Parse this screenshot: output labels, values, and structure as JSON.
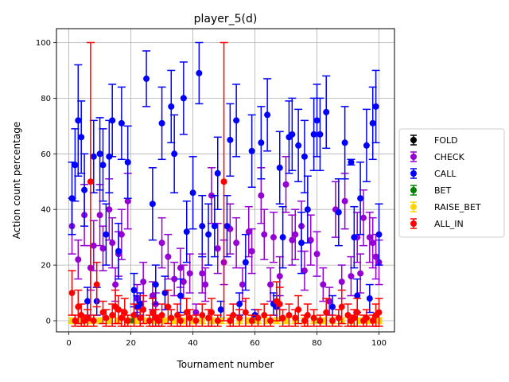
{
  "chart_data": {
    "type": "scatter",
    "title": "player_5(d)",
    "xlabel": "Tournament number",
    "ylabel": "Action count percentage",
    "xlim": [
      -4,
      105
    ],
    "ylim": [
      -4,
      105
    ],
    "xticks": [
      0,
      20,
      40,
      60,
      80,
      100
    ],
    "yticks": [
      0,
      20,
      40,
      60,
      80,
      100
    ],
    "grid": true,
    "legend_position": "center-right",
    "error_bars": true,
    "series": [
      {
        "name": "FOLD",
        "color": "#000000",
        "x": [
          1,
          20,
          40,
          60,
          80,
          100
        ],
        "y": [
          0,
          0,
          0,
          0,
          0,
          0
        ],
        "err": [
          0,
          0,
          0,
          0,
          0,
          0
        ]
      },
      {
        "name": "CHECK",
        "color": "#9400d3",
        "x": [
          1,
          3,
          5,
          7,
          8,
          10,
          11,
          13,
          14,
          15,
          16,
          17,
          19,
          22,
          24,
          27,
          28,
          30,
          32,
          34,
          36,
          37,
          39,
          41,
          43,
          44,
          46,
          48,
          50,
          52,
          54,
          56,
          58,
          59,
          62,
          63,
          65,
          66,
          68,
          70,
          72,
          73,
          75,
          76,
          78,
          80,
          82,
          84,
          86,
          88,
          89,
          91,
          93,
          94,
          95,
          97,
          98,
          99,
          100
        ],
        "y": [
          34,
          22,
          38,
          19,
          27,
          38,
          26,
          40,
          28,
          13,
          24,
          31,
          43,
          8,
          14,
          9,
          6,
          28,
          23,
          15,
          19,
          14,
          17,
          3,
          17,
          13,
          45,
          26,
          21,
          33,
          28,
          13,
          32,
          25,
          45,
          31,
          13,
          30,
          16,
          49,
          29,
          31,
          34,
          18,
          29,
          24,
          13,
          7,
          40,
          14,
          43,
          16,
          30,
          17,
          37,
          30,
          28,
          23,
          21
        ],
        "err": [
          10,
          7,
          11,
          8,
          9,
          11,
          8,
          11,
          9,
          6,
          8,
          9,
          10,
          5,
          7,
          5,
          4,
          9,
          8,
          6,
          7,
          6,
          7,
          3,
          7,
          6,
          10,
          9,
          8,
          9,
          9,
          6,
          9,
          8,
          10,
          9,
          6,
          9,
          7,
          10,
          9,
          9,
          9,
          7,
          9,
          8,
          6,
          5,
          10,
          6,
          10,
          7,
          9,
          7,
          10,
          9,
          9,
          8,
          8
        ]
      },
      {
        "name": "CALL",
        "color": "#0000ff",
        "x": [
          1,
          2,
          3,
          4,
          5,
          6,
          8,
          9,
          10,
          11,
          12,
          13,
          14,
          16,
          17,
          19,
          21,
          22,
          23,
          25,
          27,
          28,
          30,
          31,
          33,
          34,
          36,
          37,
          38,
          40,
          42,
          43,
          45,
          47,
          48,
          49,
          51,
          52,
          54,
          55,
          57,
          59,
          60,
          62,
          64,
          66,
          67,
          68,
          69,
          71,
          72,
          74,
          75,
          76,
          77,
          79,
          80,
          81,
          83,
          85,
          87,
          89,
          91,
          92,
          93,
          94,
          96,
          97,
          98,
          99,
          100
        ],
        "y": [
          44,
          56,
          72,
          66,
          47,
          7,
          59,
          7,
          60,
          56,
          31,
          59,
          72,
          25,
          71,
          57,
          11,
          5,
          6,
          87,
          42,
          13,
          71,
          10,
          77,
          60,
          9,
          80,
          32,
          46,
          89,
          34,
          31,
          34,
          53,
          4,
          34,
          65,
          72,
          6,
          21,
          61,
          2,
          64,
          74,
          6,
          5,
          55,
          30,
          66,
          67,
          63,
          28,
          59,
          40,
          67,
          72,
          67,
          75,
          5,
          39,
          64,
          57,
          30,
          9,
          44,
          63,
          8,
          71,
          77,
          31
        ],
        "err": [
          13,
          13,
          20,
          13,
          13,
          5,
          13,
          5,
          13,
          13,
          11,
          13,
          13,
          10,
          13,
          13,
          6,
          4,
          4,
          10,
          13,
          7,
          13,
          6,
          13,
          14,
          6,
          13,
          11,
          13,
          11,
          11,
          11,
          11,
          13,
          3,
          11,
          13,
          13,
          4,
          10,
          13,
          2,
          13,
          13,
          4,
          4,
          13,
          11,
          13,
          13,
          13,
          11,
          13,
          12,
          13,
          13,
          13,
          13,
          4,
          12,
          13,
          1,
          11,
          6,
          13,
          13,
          5,
          13,
          13,
          11
        ]
      },
      {
        "name": "BET",
        "color": "#008000",
        "x": [
          1,
          20,
          40,
          60,
          80,
          100
        ],
        "y": [
          0,
          0,
          0,
          0,
          0,
          0
        ],
        "err": [
          0,
          0,
          0,
          0,
          0,
          0
        ]
      },
      {
        "name": "RAISE_BET",
        "color": "#ffd700",
        "x": [
          1,
          4,
          7,
          10,
          13,
          16,
          19,
          22,
          25,
          28,
          31,
          34,
          37,
          40,
          43,
          46,
          49,
          52,
          55,
          58,
          61,
          64,
          67,
          70,
          73,
          76,
          79,
          82,
          85,
          88,
          91,
          94,
          97,
          100
        ],
        "y": [
          0,
          0,
          0,
          0,
          0,
          0,
          0,
          0,
          0,
          0,
          0,
          0,
          0,
          0,
          0,
          0,
          0,
          0,
          0,
          0,
          0,
          0,
          0,
          0,
          0,
          0,
          0,
          0,
          0,
          0,
          0,
          0,
          0,
          0
        ],
        "err": [
          1,
          1,
          1,
          1,
          1,
          1,
          1,
          1,
          1,
          1,
          1,
          1,
          1,
          1,
          1,
          1,
          1,
          1,
          1,
          1,
          1,
          1,
          1,
          1,
          1,
          1,
          1,
          1,
          1,
          1,
          1,
          1,
          1,
          1
        ]
      },
      {
        "name": "ALL_IN",
        "color": "#ff0000",
        "x": [
          1,
          2,
          3,
          4,
          5,
          6,
          7,
          8,
          9,
          11,
          12,
          14,
          15,
          16,
          17,
          18,
          19,
          21,
          23,
          24,
          26,
          27,
          28,
          29,
          30,
          32,
          33,
          35,
          36,
          38,
          39,
          41,
          43,
          45,
          46,
          48,
          50,
          52,
          53,
          55,
          57,
          59,
          61,
          63,
          65,
          67,
          68,
          69,
          71,
          73,
          74,
          76,
          77,
          79,
          81,
          83,
          85,
          87,
          88,
          90,
          91,
          92,
          93,
          95,
          96,
          98,
          99,
          100
        ],
        "y": [
          10,
          0,
          5,
          2,
          0,
          1,
          50,
          0,
          13,
          3,
          1,
          2,
          5,
          4,
          1,
          3,
          0,
          2,
          1,
          4,
          0,
          3,
          1,
          0,
          2,
          5,
          1,
          2,
          0,
          3,
          1,
          0,
          2,
          1,
          3,
          0,
          50,
          0,
          2,
          1,
          3,
          0,
          1,
          2,
          0,
          7,
          6,
          1,
          2,
          1,
          4,
          0,
          2,
          1,
          0,
          3,
          0,
          1,
          5,
          2,
          0,
          1,
          3,
          0,
          1,
          0,
          2,
          3
        ],
        "err": [
          8,
          2,
          6,
          4,
          2,
          3,
          50,
          2,
          8,
          4,
          3,
          4,
          6,
          5,
          3,
          5,
          2,
          4,
          3,
          5,
          2,
          5,
          3,
          2,
          4,
          6,
          3,
          4,
          2,
          5,
          3,
          2,
          4,
          3,
          5,
          2,
          50,
          2,
          4,
          3,
          5,
          2,
          3,
          4,
          2,
          7,
          6,
          3,
          4,
          3,
          5,
          2,
          4,
          3,
          2,
          5,
          2,
          3,
          6,
          4,
          2,
          3,
          5,
          2,
          3,
          2,
          4,
          5
        ]
      }
    ]
  }
}
